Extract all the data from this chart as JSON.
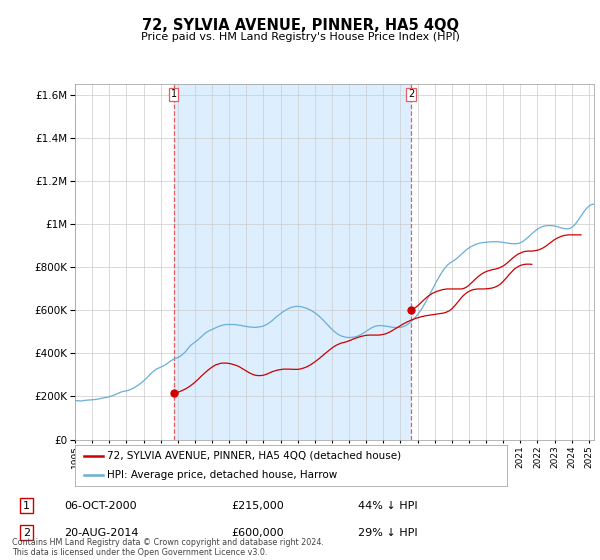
{
  "title": "72, SYLVIA AVENUE, PINNER, HA5 4QQ",
  "subtitle": "Price paid vs. HM Land Registry's House Price Index (HPI)",
  "footnote": "Contains HM Land Registry data © Crown copyright and database right 2024.\nThis data is licensed under the Open Government Licence v3.0.",
  "legend_entries": [
    "72, SYLVIA AVENUE, PINNER, HA5 4QQ (detached house)",
    "HPI: Average price, detached house, Harrow"
  ],
  "sale1_date": "06-OCT-2000",
  "sale1_price": "£215,000",
  "sale1_pct": "44% ↓ HPI",
  "sale1_x": 2000.76,
  "sale1_y": 215000,
  "sale2_date": "20-AUG-2014",
  "sale2_price": "£600,000",
  "sale2_pct": "29% ↓ HPI",
  "sale2_x": 2014.63,
  "sale2_y": 600000,
  "hpi_color": "#6aaed6",
  "sale_color": "#cc0000",
  "vline_color": "#e06060",
  "shade_color": "#ddeeff",
  "ylim": [
    0,
    1650000
  ],
  "xlim_left": 1995.0,
  "xlim_right": 2025.3,
  "yticks": [
    0,
    200000,
    400000,
    600000,
    800000,
    1000000,
    1200000,
    1400000,
    1600000
  ],
  "hpi_data_monthly": {
    "start_year": 1995.0,
    "step": 0.0833,
    "values": [
      182000,
      181000,
      180000,
      180000,
      179000,
      180000,
      181000,
      182000,
      183000,
      183000,
      184000,
      184000,
      185000,
      185000,
      186000,
      187000,
      188000,
      189000,
      191000,
      192000,
      194000,
      195000,
      196000,
      197000,
      199000,
      201000,
      203000,
      206000,
      208000,
      211000,
      214000,
      217000,
      220000,
      222000,
      224000,
      225000,
      226000,
      228000,
      230000,
      233000,
      236000,
      239000,
      243000,
      247000,
      251000,
      256000,
      261000,
      266000,
      272000,
      278000,
      284000,
      291000,
      298000,
      305000,
      311000,
      317000,
      322000,
      327000,
      330000,
      333000,
      336000,
      339000,
      342000,
      346000,
      350000,
      355000,
      360000,
      365000,
      369000,
      373000,
      376000,
      378000,
      381000,
      384000,
      388000,
      393000,
      399000,
      405000,
      413000,
      421000,
      429000,
      436000,
      442000,
      447000,
      452000,
      457000,
      462000,
      468000,
      474000,
      480000,
      486000,
      492000,
      497000,
      501000,
      505000,
      508000,
      511000,
      514000,
      517000,
      520000,
      523000,
      526000,
      528000,
      530000,
      532000,
      533000,
      534000,
      534000,
      534000,
      534000,
      534000,
      534000,
      534000,
      533000,
      532000,
      531000,
      530000,
      529000,
      527000,
      526000,
      525000,
      524000,
      523000,
      522000,
      522000,
      521000,
      521000,
      521000,
      522000,
      523000,
      524000,
      525000,
      527000,
      530000,
      533000,
      537000,
      541000,
      546000,
      551000,
      557000,
      563000,
      569000,
      574000,
      579000,
      584000,
      589000,
      594000,
      598000,
      602000,
      606000,
      609000,
      612000,
      614000,
      616000,
      617000,
      618000,
      618000,
      618000,
      617000,
      616000,
      614000,
      612000,
      610000,
      607000,
      604000,
      601000,
      597000,
      593000,
      589000,
      584000,
      579000,
      573000,
      567000,
      561000,
      554000,
      547000,
      540000,
      533000,
      526000,
      519000,
      512000,
      506000,
      500000,
      495000,
      490000,
      486000,
      483000,
      480000,
      478000,
      476000,
      475000,
      474000,
      474000,
      474000,
      474000,
      475000,
      476000,
      478000,
      480000,
      483000,
      486000,
      490000,
      494000,
      498000,
      502000,
      507000,
      511000,
      515000,
      519000,
      522000,
      525000,
      527000,
      528000,
      529000,
      529000,
      529000,
      528000,
      527000,
      526000,
      525000,
      524000,
      523000,
      522000,
      521000,
      520000,
      520000,
      520000,
      520000,
      521000,
      522000,
      524000,
      527000,
      530000,
      534000,
      539000,
      544000,
      550000,
      557000,
      564000,
      571000,
      579000,
      588000,
      597000,
      607000,
      618000,
      629000,
      641000,
      653000,
      665000,
      678000,
      691000,
      703000,
      716000,
      729000,
      741000,
      753000,
      764000,
      775000,
      785000,
      794000,
      802000,
      809000,
      815000,
      820000,
      824000,
      829000,
      833000,
      838000,
      843000,
      849000,
      855000,
      861000,
      867000,
      873000,
      879000,
      884000,
      889000,
      893000,
      897000,
      900000,
      903000,
      906000,
      908000,
      910000,
      912000,
      913000,
      914000,
      915000,
      916000,
      916000,
      917000,
      917000,
      918000,
      918000,
      918000,
      918000,
      918000,
      918000,
      917000,
      916000,
      915000,
      914000,
      913000,
      912000,
      911000,
      910000,
      909000,
      909000,
      909000,
      909000,
      910000,
      911000,
      913000,
      916000,
      920000,
      925000,
      930000,
      936000,
      942000,
      948000,
      954000,
      960000,
      966000,
      971000,
      976000,
      980000,
      984000,
      987000,
      989000,
      991000,
      992000,
      993000,
      993000,
      993000,
      993000,
      992000,
      991000,
      990000,
      988000,
      986000,
      984000,
      982000,
      980000,
      979000,
      978000,
      978000,
      979000,
      981000,
      984000,
      989000,
      995000,
      1003000,
      1012000,
      1021000,
      1031000,
      1041000,
      1051000,
      1060000,
      1069000,
      1076000,
      1082000,
      1087000,
      1090000,
      1092000,
      1093000,
      1093000,
      1093000,
      1092000,
      1091000,
      1090000,
      1090000,
      1090000,
      1091000,
      1093000,
      1096000,
      1100000,
      1105000,
      1110000,
      1116000,
      1122000,
      1128000,
      1133000,
      1138000,
      1142000
    ]
  },
  "sale1_scaled_monthly": {
    "start_year": 2000.76,
    "end_year": 2024.5,
    "values": [
      215000,
      216000,
      218000,
      220000,
      222000,
      225000,
      228000,
      231000,
      234000,
      238000,
      242000,
      246000,
      251000,
      256000,
      261000,
      267000,
      273000,
      279000,
      285000,
      292000,
      298000,
      304000,
      310000,
      316000,
      322000,
      327000,
      332000,
      337000,
      341000,
      345000,
      348000,
      350000,
      352000,
      354000,
      355000,
      355000,
      355000,
      355000,
      354000,
      353000,
      352000,
      350000,
      348000,
      346000,
      344000,
      341000,
      338000,
      334000,
      330000,
      326000,
      322000,
      318000,
      314000,
      310000,
      307000,
      304000,
      301000,
      299000,
      298000,
      297000,
      297000,
      297000,
      298000,
      299000,
      301000,
      303000,
      306000,
      309000,
      312000,
      315000,
      317000,
      319000,
      321000,
      323000,
      324000,
      325000,
      326000,
      327000,
      327000,
      327000,
      327000,
      327000,
      327000,
      326000,
      326000,
      326000,
      326000,
      326000,
      327000,
      328000,
      330000,
      332000,
      334000,
      337000,
      340000,
      344000,
      347000,
      352000,
      356000,
      361000,
      366000,
      371000,
      376000,
      382000,
      387000,
      393000,
      399000,
      404000,
      409000,
      415000,
      420000,
      425000,
      430000,
      434000,
      438000,
      441000,
      444000,
      447000,
      449000,
      450000,
      452000,
      454000,
      456000,
      459000,
      461000,
      464000,
      467000,
      469000,
      472000,
      474000,
      476000,
      478000,
      480000,
      481000,
      483000,
      484000,
      484000,
      485000,
      485000,
      485000,
      485000,
      485000,
      485000,
      485000,
      485000,
      486000,
      487000,
      488000,
      490000,
      492000,
      495000,
      498000,
      501000,
      505000,
      509000,
      513000,
      517000,
      521000,
      525000,
      529000,
      533000,
      537000,
      540000,
      544000,
      547000,
      550000,
      553000,
      556000,
      558000,
      561000,
      563000,
      565000,
      567000,
      569000,
      571000,
      572000,
      574000,
      575000,
      576000,
      577000,
      578000,
      579000,
      580000,
      581000,
      582000,
      583000,
      584000,
      585000,
      586000,
      587000,
      589000,
      591000,
      594000,
      597000,
      602000,
      607000,
      614000,
      621000,
      629000,
      637000,
      645000,
      653000,
      661000,
      668000,
      674000,
      679000,
      684000,
      688000,
      691000,
      694000,
      696000,
      697000,
      698000,
      699000,
      699000,
      699000,
      699000,
      699000,
      699000,
      700000,
      700000,
      701000,
      702000,
      703000,
      705000,
      707000,
      710000,
      713000,
      717000,
      722000,
      728000,
      735000,
      742000,
      749000,
      757000,
      765000,
      772000,
      779000,
      786000,
      792000,
      797000,
      801000,
      805000,
      808000,
      810000,
      812000,
      813000,
      814000,
      814000,
      814000,
      814000,
      813000
    ]
  },
  "sale2_scaled_monthly": {
    "start_year": 2014.63,
    "end_year": 2024.5,
    "values": [
      600000,
      604000,
      608000,
      613000,
      618000,
      624000,
      630000,
      636000,
      643000,
      649000,
      655000,
      661000,
      666000,
      671000,
      675000,
      679000,
      682000,
      685000,
      688000,
      690000,
      692000,
      694000,
      696000,
      697000,
      698000,
      699000,
      699000,
      699000,
      699000,
      699000,
      699000,
      699000,
      699000,
      699000,
      699000,
      699000,
      700000,
      702000,
      705000,
      709000,
      714000,
      720000,
      726000,
      732000,
      739000,
      745000,
      751000,
      757000,
      762000,
      767000,
      771000,
      775000,
      778000,
      781000,
      783000,
      785000,
      787000,
      789000,
      790000,
      791000,
      793000,
      795000,
      798000,
      801000,
      804000,
      808000,
      813000,
      818000,
      824000,
      830000,
      836000,
      842000,
      847000,
      852000,
      857000,
      861000,
      864000,
      867000,
      870000,
      872000,
      873000,
      874000,
      875000,
      875000,
      875000,
      875000,
      876000,
      877000,
      878000,
      880000,
      882000,
      885000,
      888000,
      892000,
      896000,
      901000,
      906000,
      911000,
      916000,
      921000,
      926000,
      930000,
      934000,
      937000,
      940000,
      943000,
      945000,
      947000,
      948000,
      949000,
      950000,
      950000,
      950000,
      950000,
      950000,
      950000,
      950000,
      950000,
      950000,
      950000
    ]
  }
}
